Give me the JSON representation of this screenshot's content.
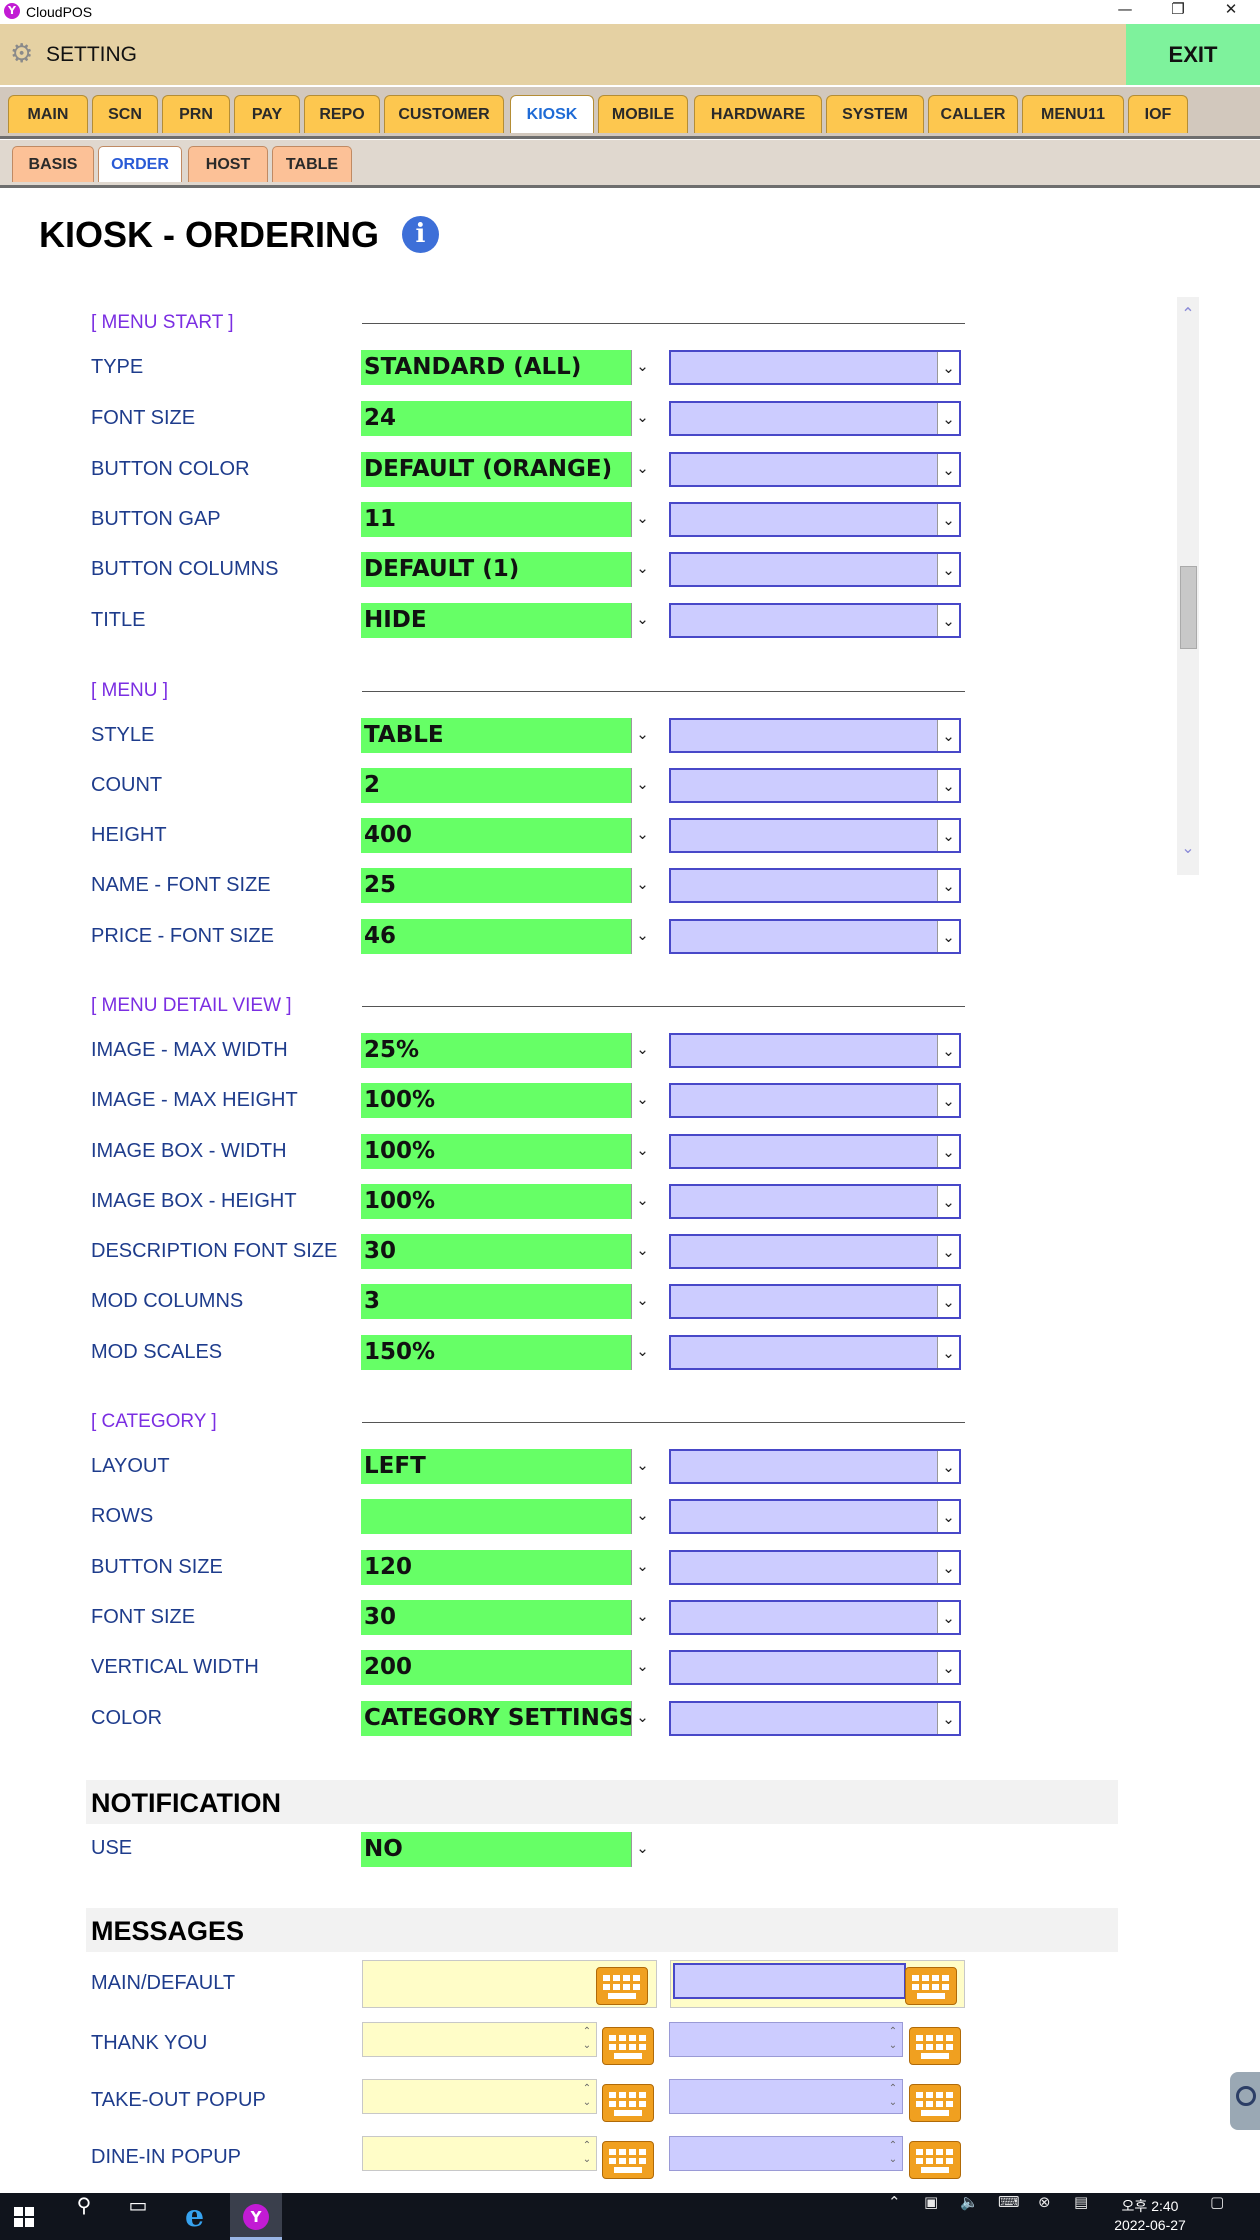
{
  "window": {
    "title": "CloudPOS",
    "logo_letter": "Y",
    "min": "—",
    "restore": "❐",
    "close": "✕"
  },
  "header": {
    "title": "SETTING",
    "exit_label": "EXIT"
  },
  "main_tabs": [
    "MAIN",
    "SCN",
    "PRN",
    "PAY",
    "REPO",
    "CUSTOMER",
    "KIOSK",
    "MOBILE",
    "HARDWARE",
    "SYSTEM",
    "CALLER",
    "MENU11",
    "IOF"
  ],
  "active_main_tab": "KIOSK",
  "sub_tabs": [
    "BASIS",
    "ORDER",
    "HOST",
    "TABLE"
  ],
  "active_sub_tab": "ORDER",
  "page": {
    "title": "KIOSK - ORDERING",
    "info_glyph": "i"
  },
  "sections": {
    "menu_start": {
      "title": "[ MENU START ]",
      "rows": [
        {
          "label": "TYPE",
          "value": "STANDARD (ALL)"
        },
        {
          "label": "FONT SIZE",
          "value": "24"
        },
        {
          "label": "BUTTON COLOR",
          "value": "DEFAULT (ORANGE)"
        },
        {
          "label": "BUTTON GAP",
          "value": "11"
        },
        {
          "label": "BUTTON COLUMNS",
          "value": "DEFAULT (1)"
        },
        {
          "label": "TITLE",
          "value": "HIDE"
        }
      ]
    },
    "menu": {
      "title": "[ MENU ]",
      "rows": [
        {
          "label": "STYLE",
          "value": "TABLE"
        },
        {
          "label": "COUNT",
          "value": "2"
        },
        {
          "label": "HEIGHT",
          "value": "400"
        },
        {
          "label": "NAME - FONT SIZE",
          "value": "25"
        },
        {
          "label": "PRICE - FONT SIZE",
          "value": "46"
        }
      ]
    },
    "menu_detail": {
      "title": "[ MENU DETAIL VIEW ]",
      "rows": [
        {
          "label": "IMAGE - MAX WIDTH",
          "value": "25%"
        },
        {
          "label": "IMAGE - MAX HEIGHT",
          "value": "100%"
        },
        {
          "label": "IMAGE BOX - WIDTH",
          "value": "100%"
        },
        {
          "label": "IMAGE BOX - HEIGHT",
          "value": "100%"
        },
        {
          "label": "DESCRIPTION FONT SIZE",
          "value": "30"
        },
        {
          "label": "MOD COLUMNS",
          "value": "3"
        },
        {
          "label": "MOD SCALES",
          "value": "150%"
        }
      ]
    },
    "category": {
      "title": "[ CATEGORY ]",
      "rows": [
        {
          "label": "LAYOUT",
          "value": "LEFT"
        },
        {
          "label": "ROWS",
          "value": ""
        },
        {
          "label": "BUTTON SIZE",
          "value": "120"
        },
        {
          "label": "FONT SIZE",
          "value": "30"
        },
        {
          "label": "VERTICAL WIDTH",
          "value": "200"
        },
        {
          "label": "COLOR",
          "value": "CATEGORY SETTINGS"
        }
      ]
    }
  },
  "notification": {
    "heading": "NOTIFICATION",
    "use_label": "USE",
    "use_value": "NO"
  },
  "messages": {
    "heading": "MESSAGES",
    "rows": [
      {
        "label": "MAIN/DEFAULT",
        "value_1": "",
        "value_2": ""
      },
      {
        "label": "THANK YOU",
        "value_1": "",
        "value_2": ""
      },
      {
        "label": "TAKE-OUT POPUP",
        "value_1": "",
        "value_2": ""
      },
      {
        "label": "DINE-IN POPUP",
        "value_1": "",
        "value_2": ""
      }
    ]
  },
  "taskbar": {
    "time": "오후 2:40",
    "date": "2022-06-27"
  },
  "colors": {
    "selected_green": "#66ff66",
    "secondary_purple": "#ccccff",
    "tab_orange": "#fdc74f",
    "exit_green": "#7ef29c",
    "section_purple": "#7b2ee2",
    "label_blue": "#1e3c8c"
  }
}
